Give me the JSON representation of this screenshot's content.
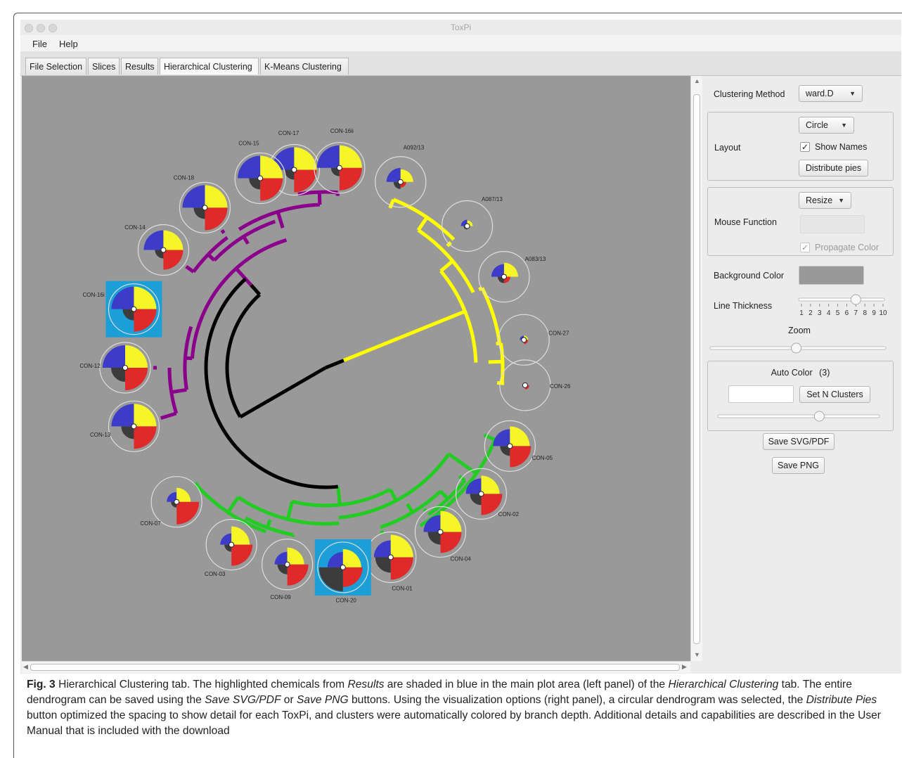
{
  "window": {
    "title": "ToxPi"
  },
  "menu": {
    "file": "File",
    "help": "Help"
  },
  "tabs": {
    "file_selection": "File Selection",
    "slices": "Slices",
    "results": "Results",
    "hierarchical": "Hierarchical Clustering",
    "kmeans": "K-Means Clustering"
  },
  "panel": {
    "clustering_method_label": "Clustering Method",
    "clustering_method_value": "ward.D",
    "layout_label": "Layout",
    "layout_value": "Circle",
    "show_names_label": "Show Names",
    "show_names_checked": true,
    "distribute_pies": "Distribute pies",
    "mouse_function_label": "Mouse Function",
    "mouse_function_value": "Resize",
    "propagate_color_label": "Propagate Color",
    "background_color_label": "Background Color",
    "background_color": "#999999",
    "line_thickness_label": "Line Thickness",
    "line_thickness_value": 7,
    "line_thickness_ticks": [
      "1",
      "2",
      "3",
      "4",
      "5",
      "6",
      "7",
      "8",
      "9",
      "10"
    ],
    "zoom_label": "Zoom",
    "zoom_value": 0.49,
    "auto_color_label": "Auto Color",
    "auto_color_count": "(3)",
    "set_n_clusters": "Set N Clusters",
    "n_clusters_value": 0.63,
    "save_svg": "Save SVG/PDF",
    "save_png": "Save PNG"
  },
  "dendrogram": {
    "colors": {
      "purple": "#8b008b",
      "yellow": "#ffff00",
      "green": "#22cc22",
      "black": "#000000",
      "slice_blue": "#3c3cc8",
      "slice_yellow": "#f5f527",
      "slice_red": "#e02a2a",
      "slice_dark": "#3c3c3c",
      "highlight": "#1c9fd6"
    },
    "leaves": [
      {
        "name": "CON-17",
        "highlight": false
      },
      {
        "name": "CON-16ii",
        "highlight": false
      },
      {
        "name": "A092/13",
        "highlight": false
      },
      {
        "name": "A087/13",
        "highlight": false
      },
      {
        "name": "A083/13",
        "highlight": false
      },
      {
        "name": "CON-27",
        "highlight": false
      },
      {
        "name": "CON-26",
        "highlight": false
      },
      {
        "name": "CON-05",
        "highlight": false
      },
      {
        "name": "CON-02",
        "highlight": false
      },
      {
        "name": "CON-04",
        "highlight": false
      },
      {
        "name": "CON-01",
        "highlight": false
      },
      {
        "name": "CON-20",
        "highlight": true
      },
      {
        "name": "CON-09",
        "highlight": false
      },
      {
        "name": "CON-03",
        "highlight": false
      },
      {
        "name": "CON-07",
        "highlight": false
      },
      {
        "name": "CON-13",
        "highlight": false
      },
      {
        "name": "CON-12",
        "highlight": false
      },
      {
        "name": "CON-16i",
        "highlight": true
      },
      {
        "name": "CON-14",
        "highlight": false
      },
      {
        "name": "CON-18",
        "highlight": false
      },
      {
        "name": "CON-15",
        "highlight": false
      }
    ]
  },
  "caption": {
    "fig": "Fig. 3",
    "p1": " Hierarchical Clustering tab. The highlighted chemicals from ",
    "i1": "Results",
    "p2": " are shaded in blue in the main plot area (left panel) of the ",
    "i2": "Hierarchical Clustering",
    "p3": " tab. The entire dendrogram can be saved using the ",
    "i3": "Save SVG/PDF",
    "p4": " or ",
    "i4": "Save PNG",
    "p5": " buttons. Using the visualization options (right panel), a circular dendrogram was selected, the ",
    "i5": "Distribute Pies",
    "p6": " button optimized the spacing to show detail for each ToxPi, and clusters were automatically colored by branch depth. Additional details and capabilities are described in the User Manual that is included with the download"
  }
}
